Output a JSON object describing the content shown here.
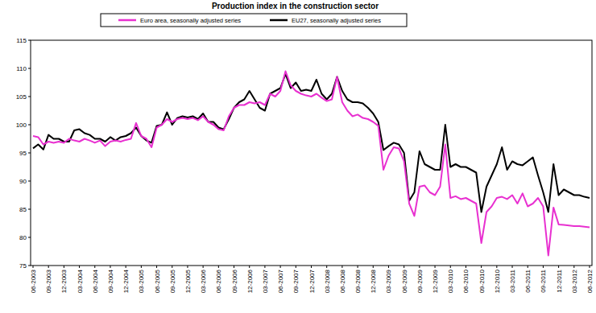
{
  "chart_data": {
    "type": "line",
    "title": "Production index in the construction sector",
    "categories": [
      "06-2003",
      null,
      null,
      "09-2003",
      null,
      null,
      "12-2003",
      null,
      null,
      "03-2004",
      null,
      null,
      "06-2004",
      null,
      null,
      "09-2004",
      null,
      null,
      "12-2004",
      null,
      null,
      "03-2005",
      null,
      null,
      "06-2005",
      null,
      null,
      "09-2005",
      null,
      null,
      "12-2005",
      null,
      null,
      "03-2006",
      null,
      null,
      "06-2006",
      null,
      null,
      "09-2006",
      null,
      null,
      "12-2006",
      null,
      null,
      "03-2007",
      null,
      null,
      "06-2007",
      null,
      null,
      "09-2007",
      null,
      null,
      "12-2007",
      null,
      null,
      "03-2008",
      null,
      null,
      "06-2008",
      null,
      null,
      "09-2008",
      null,
      null,
      "12-2008",
      null,
      null,
      "03-2009",
      null,
      null,
      "06-2009",
      null,
      null,
      "09-2009",
      null,
      null,
      "12-2009",
      null,
      null,
      "03-2010",
      null,
      null,
      "06-2010",
      null,
      null,
      "09-2010",
      null,
      null,
      "12-2010",
      null,
      null,
      "03-2011",
      null,
      null,
      "06-2011",
      null,
      null,
      "09-2011",
      null,
      null,
      "12-2011",
      null,
      null,
      "03-2012",
      null,
      null,
      "06-2012"
    ],
    "series": [
      {
        "name": "Euro area, seasonally adjusted series",
        "color": "#e830d0",
        "values": [
          98,
          97.8,
          96.5,
          97,
          96.8,
          97,
          96.8,
          97.5,
          97.2,
          97,
          97.5,
          97.2,
          96.8,
          97.2,
          96.2,
          97,
          97.2,
          97,
          97.3,
          97.5,
          100.3,
          98,
          97.5,
          96,
          99.5,
          100,
          101,
          100.5,
          101,
          101.2,
          101,
          101.2,
          100.8,
          101.5,
          100.5,
          100,
          99.2,
          99,
          101.5,
          103,
          103.5,
          103.5,
          104,
          103.8,
          104,
          103.5,
          105.5,
          105,
          106,
          109.5,
          107,
          106,
          105.5,
          105.2,
          105,
          105.5,
          104.8,
          104.2,
          104.5,
          108.5,
          104,
          102.5,
          101.5,
          101.8,
          101.2,
          101,
          100.5,
          99.8,
          92,
          94.5,
          96,
          95.8,
          93.5,
          86,
          83.8,
          89,
          89.2,
          88,
          87.5,
          89,
          96.5,
          87,
          87.3,
          86.8,
          87,
          86.5,
          86,
          79,
          84.5,
          85.5,
          87,
          87.2,
          86.8,
          87.5,
          86,
          87.8,
          85.5,
          86,
          87,
          85.5,
          76.8,
          85.3,
          82.3,
          82.2,
          82.1,
          82,
          82,
          81.9,
          81.8
        ]
      },
      {
        "name": "EU27, seasonally adjusted series",
        "color": "#000000",
        "values": [
          95.8,
          96.5,
          95.6,
          98.2,
          97.5,
          97.5,
          97,
          97,
          99,
          99.2,
          98.5,
          98.2,
          97.5,
          97.5,
          97,
          97.8,
          97.2,
          97.8,
          98,
          98.5,
          99.5,
          98,
          97.2,
          96.8,
          99.8,
          100,
          102.2,
          100,
          101.2,
          101.5,
          101.3,
          101.5,
          101,
          102,
          100.5,
          100.5,
          99.5,
          99.2,
          101,
          103,
          104,
          104.5,
          106,
          104.5,
          103,
          102.5,
          105.5,
          106,
          106.5,
          109,
          106.5,
          107.5,
          106,
          106.2,
          106,
          108,
          105.5,
          104.5,
          105.5,
          108.5,
          106,
          104.5,
          104,
          104,
          103.8,
          103,
          102,
          100.5,
          95.5,
          96.2,
          96.8,
          96.5,
          95,
          86.5,
          88,
          95.3,
          93,
          92.5,
          92,
          92,
          100,
          92.5,
          93,
          92.5,
          92.5,
          92,
          91.5,
          84.5,
          89,
          91,
          93,
          96,
          92,
          93.5,
          93,
          92.8,
          93.5,
          94.2,
          91,
          88,
          84.5,
          93,
          87.5,
          88.5,
          88,
          87.5,
          87.5,
          87.2,
          87
        ]
      }
    ],
    "ylim": [
      75,
      115
    ],
    "yticks": [
      75,
      80,
      85,
      90,
      95,
      100,
      105,
      110,
      115
    ],
    "grid": false,
    "legend": "top"
  }
}
